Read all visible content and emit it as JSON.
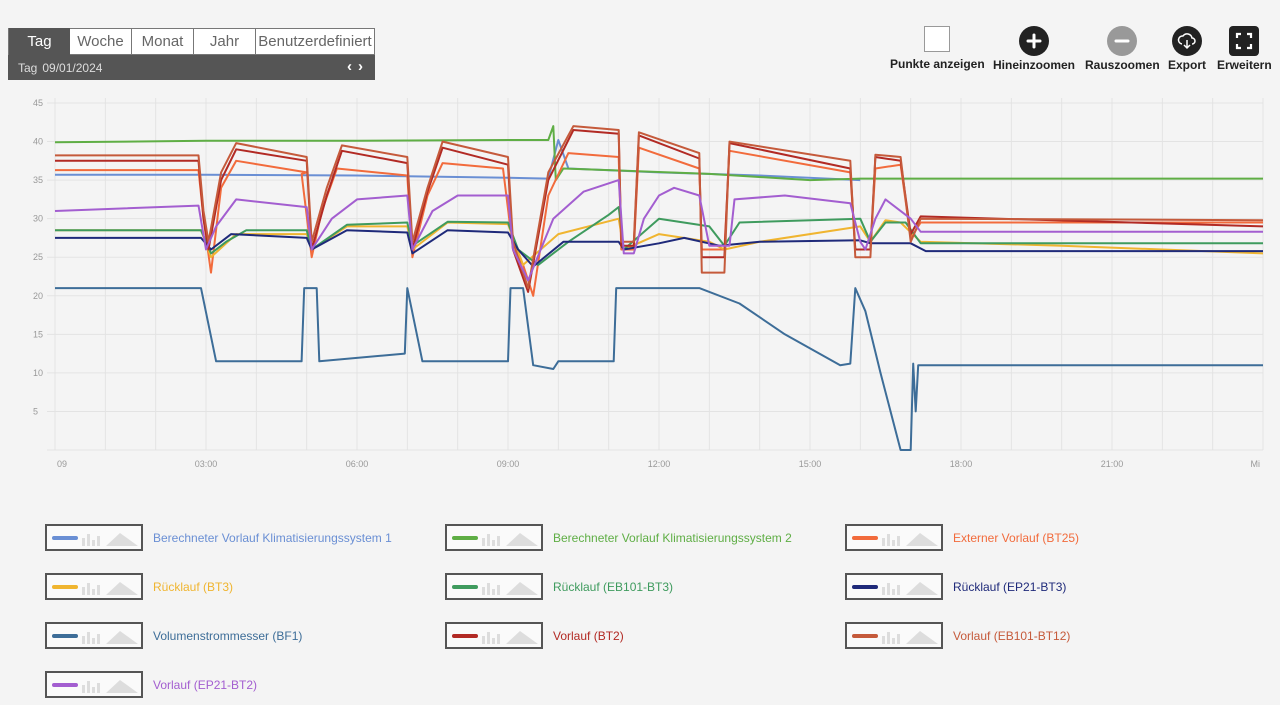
{
  "period": {
    "tabs": [
      "Tag",
      "Woche",
      "Monat",
      "Jahr",
      "Benutzerdefiniert"
    ],
    "active": "Tag",
    "unit_label": "Tag",
    "date": "09/01/2024",
    "prev": "‹",
    "next": "›"
  },
  "toolbar": {
    "points_label": "Punkte anzeigen",
    "zoom_in_label": "Hineinzoomen",
    "zoom_out_label": "Rauszoomen",
    "export_label": "Export",
    "expand_label": "Erweitern"
  },
  "colors": {
    "zoom_in": "#222222",
    "zoom_out": "#999999",
    "export": "#222222"
  },
  "chart_data": {
    "type": "line",
    "ylim": [
      0,
      45
    ],
    "yticks": [
      5,
      10,
      15,
      20,
      25,
      30,
      35,
      40,
      45
    ],
    "xlim": [
      0,
      24
    ],
    "xticks": [
      {
        "v": 0,
        "label": "09"
      },
      {
        "v": 3,
        "label": "03:00"
      },
      {
        "v": 6,
        "label": "06:00"
      },
      {
        "v": 9,
        "label": "09:00"
      },
      {
        "v": 12,
        "label": "12:00"
      },
      {
        "v": 15,
        "label": "15:00"
      },
      {
        "v": 18,
        "label": "18:00"
      },
      {
        "v": 21,
        "label": "21:00"
      },
      {
        "v": 24,
        "label": "Mi"
      }
    ],
    "grid": true,
    "series": [
      {
        "name": "Berechneter Vorlauf Klimatisierungssystem 1",
        "color": "#6a8fd4",
        "points": [
          [
            0,
            35.7
          ],
          [
            3,
            35.7
          ],
          [
            6,
            35.6
          ],
          [
            9,
            35.3
          ],
          [
            9.8,
            35.2
          ],
          [
            10,
            40.2
          ],
          [
            10.2,
            36.5
          ],
          [
            12,
            36
          ],
          [
            14,
            35.6
          ],
          [
            16,
            35
          ]
        ]
      },
      {
        "name": "Berechneter Vorlauf Klimatisierungssystem 2",
        "color": "#5fae45",
        "points": [
          [
            0,
            39.9
          ],
          [
            3,
            40.1
          ],
          [
            6,
            40.1
          ],
          [
            9,
            40.2
          ],
          [
            9.8,
            40.2
          ],
          [
            9.9,
            42
          ],
          [
            9.95,
            35
          ],
          [
            10.1,
            36.5
          ],
          [
            11,
            36.3
          ],
          [
            13,
            35.8
          ],
          [
            15,
            35
          ],
          [
            16,
            35.2
          ],
          [
            17,
            35.2
          ],
          [
            24,
            35.2
          ]
        ]
      },
      {
        "name": "Externer Vorlauf (BT25)",
        "color": "#f26b3c",
        "points": [
          [
            0,
            36.3
          ],
          [
            2.85,
            36.3
          ],
          [
            2.95,
            30
          ],
          [
            3.1,
            23
          ],
          [
            3.3,
            34
          ],
          [
            3.6,
            37.5
          ],
          [
            5,
            36
          ],
          [
            4.9,
            35.8
          ],
          [
            5.1,
            25
          ],
          [
            5.3,
            31
          ],
          [
            5.6,
            36.5
          ],
          [
            7,
            35.6
          ],
          [
            7.1,
            25
          ],
          [
            7.4,
            33
          ],
          [
            7.7,
            37.2
          ],
          [
            8.9,
            36.5
          ],
          [
            9.1,
            26
          ],
          [
            9.3,
            24
          ],
          [
            9.5,
            20
          ],
          [
            9.8,
            33
          ],
          [
            10.2,
            38.5
          ],
          [
            11.2,
            38
          ],
          [
            11.25,
            26
          ],
          [
            11.5,
            26
          ],
          [
            11.6,
            39.2
          ],
          [
            12.8,
            36.5
          ],
          [
            12.85,
            26
          ],
          [
            13.3,
            26
          ],
          [
            13.4,
            38.8
          ],
          [
            15.8,
            36
          ],
          [
            15.9,
            26
          ],
          [
            16.2,
            26
          ],
          [
            16.3,
            36.5
          ],
          [
            16.8,
            37
          ],
          [
            17.0,
            27.5
          ],
          [
            17.2,
            29.5
          ],
          [
            24,
            29.5
          ]
        ]
      },
      {
        "name": "Rücklauf (BT3)",
        "color": "#f0b530",
        "points": [
          [
            0,
            28.5
          ],
          [
            2.9,
            28.5
          ],
          [
            3.1,
            25
          ],
          [
            3.6,
            28
          ],
          [
            5,
            28
          ],
          [
            5.1,
            26
          ],
          [
            5.8,
            29
          ],
          [
            7,
            29
          ],
          [
            7.1,
            26
          ],
          [
            7.8,
            29.5
          ],
          [
            9,
            29.3
          ],
          [
            9.3,
            24
          ],
          [
            10,
            28
          ],
          [
            11.2,
            30
          ],
          [
            11.3,
            26
          ],
          [
            12,
            28
          ],
          [
            13,
            27
          ],
          [
            13.3,
            26
          ],
          [
            14,
            27
          ],
          [
            16,
            29
          ],
          [
            16.2,
            27
          ],
          [
            16.5,
            29.8
          ],
          [
            16.8,
            29.5
          ],
          [
            17.2,
            27
          ],
          [
            20,
            26.5
          ],
          [
            24,
            25.5
          ]
        ]
      },
      {
        "name": "Rücklauf (EB101-BT3)",
        "color": "#3f9b5e",
        "points": [
          [
            0,
            28.5
          ],
          [
            2.9,
            28.5
          ],
          [
            3.1,
            25.5
          ],
          [
            3.4,
            27
          ],
          [
            3.8,
            28.5
          ],
          [
            5,
            28.5
          ],
          [
            5.1,
            26
          ],
          [
            5.8,
            29.2
          ],
          [
            7,
            29.5
          ],
          [
            7.1,
            26.5
          ],
          [
            7.8,
            29.6
          ],
          [
            9,
            29.5
          ],
          [
            9.2,
            26
          ],
          [
            9.6,
            24
          ],
          [
            10.2,
            27
          ],
          [
            11,
            30.5
          ],
          [
            11.2,
            31.5
          ],
          [
            11.3,
            26
          ],
          [
            12,
            30
          ],
          [
            13,
            29
          ],
          [
            13.3,
            26.5
          ],
          [
            13.6,
            29.5
          ],
          [
            16,
            30
          ],
          [
            16.2,
            27
          ],
          [
            16.5,
            29.5
          ],
          [
            16.9,
            29.5
          ],
          [
            17.2,
            26.8
          ],
          [
            24,
            26.8
          ]
        ]
      },
      {
        "name": "Rücklauf (EP21-BT3)",
        "color": "#1f2a7a",
        "points": [
          [
            0,
            27.5
          ],
          [
            2.9,
            27.5
          ],
          [
            3.1,
            26
          ],
          [
            3.5,
            28
          ],
          [
            5,
            27.5
          ],
          [
            5.1,
            26
          ],
          [
            5.8,
            28.5
          ],
          [
            7,
            28.2
          ],
          [
            7.1,
            25.5
          ],
          [
            7.8,
            28.5
          ],
          [
            9,
            28.2
          ],
          [
            9.2,
            26
          ],
          [
            9.5,
            23.8
          ],
          [
            10.1,
            27
          ],
          [
            11.2,
            27
          ],
          [
            11.3,
            26
          ],
          [
            12,
            26.8
          ],
          [
            12.5,
            27.5
          ],
          [
            13.2,
            26.5
          ],
          [
            14,
            27
          ],
          [
            16,
            27.2
          ],
          [
            16.2,
            26.8
          ],
          [
            16.5,
            26.8
          ],
          [
            17,
            26.8
          ],
          [
            17.3,
            25.8
          ],
          [
            24,
            25.8
          ]
        ]
      },
      {
        "name": "Volumenstrommesser (BF1)",
        "color": "#3d6d98",
        "points": [
          [
            0,
            21
          ],
          [
            2.9,
            21
          ],
          [
            3.2,
            11.5
          ],
          [
            4.9,
            11.5
          ],
          [
            4.95,
            21
          ],
          [
            5.2,
            21
          ],
          [
            5.25,
            11.5
          ],
          [
            6.95,
            12.5
          ],
          [
            7.0,
            21
          ],
          [
            7.3,
            11.5
          ],
          [
            9.0,
            11.5
          ],
          [
            9.05,
            21
          ],
          [
            9.3,
            21
          ],
          [
            9.5,
            11
          ],
          [
            9.9,
            10.5
          ],
          [
            10.0,
            11.5
          ],
          [
            11.1,
            11.5
          ],
          [
            11.15,
            21
          ],
          [
            11.3,
            21
          ],
          [
            12.8,
            21
          ],
          [
            13.6,
            19
          ],
          [
            14.5,
            15
          ],
          [
            15.6,
            11
          ],
          [
            15.8,
            11.2
          ],
          [
            15.9,
            21
          ],
          [
            16.1,
            18
          ],
          [
            16.4,
            10
          ],
          [
            16.8,
            0
          ],
          [
            17.0,
            0
          ],
          [
            17.05,
            11.2
          ],
          [
            17.1,
            5
          ],
          [
            17.15,
            11
          ],
          [
            24,
            11
          ]
        ]
      },
      {
        "name": "Vorlauf (BT2)",
        "color": "#b22a24",
        "points": [
          [
            0,
            37.5
          ],
          [
            2.85,
            37.5
          ],
          [
            2.95,
            30
          ],
          [
            3.05,
            26
          ],
          [
            3.3,
            35
          ],
          [
            3.6,
            39
          ],
          [
            5,
            37.5
          ],
          [
            5.1,
            26
          ],
          [
            5.4,
            33
          ],
          [
            5.7,
            38.8
          ],
          [
            7,
            37.2
          ],
          [
            7.1,
            26
          ],
          [
            7.4,
            33.5
          ],
          [
            7.7,
            39.2
          ],
          [
            9,
            37
          ],
          [
            9.1,
            26
          ],
          [
            9.4,
            20.5
          ],
          [
            9.8,
            35
          ],
          [
            10.3,
            41.5
          ],
          [
            11.2,
            41
          ],
          [
            11.25,
            26.5
          ],
          [
            11.5,
            26.5
          ],
          [
            11.6,
            40.8
          ],
          [
            12.8,
            37.8
          ],
          [
            12.85,
            25
          ],
          [
            13.3,
            25
          ],
          [
            13.4,
            39.8
          ],
          [
            15.8,
            36.5
          ],
          [
            15.9,
            26
          ],
          [
            16.2,
            26
          ],
          [
            16.3,
            38
          ],
          [
            16.8,
            37.5
          ],
          [
            17.0,
            28
          ],
          [
            17.2,
            30.3
          ],
          [
            24,
            29
          ]
        ]
      },
      {
        "name": "Vorlauf (EB101-BT12)",
        "color": "#c55a3b",
        "points": [
          [
            0,
            38.2
          ],
          [
            2.85,
            38.2
          ],
          [
            2.95,
            31
          ],
          [
            3.05,
            27
          ],
          [
            3.3,
            36
          ],
          [
            3.6,
            39.8
          ],
          [
            5,
            38
          ],
          [
            5.1,
            27
          ],
          [
            5.4,
            34
          ],
          [
            5.7,
            39.5
          ],
          [
            7,
            38
          ],
          [
            7.1,
            27
          ],
          [
            7.4,
            34
          ],
          [
            7.7,
            40
          ],
          [
            9,
            38
          ],
          [
            9.1,
            27
          ],
          [
            9.4,
            21
          ],
          [
            9.8,
            36
          ],
          [
            10.3,
            42
          ],
          [
            11.2,
            41.5
          ],
          [
            11.25,
            27
          ],
          [
            11.5,
            27
          ],
          [
            11.6,
            41.2
          ],
          [
            12.8,
            38.5
          ],
          [
            12.85,
            23
          ],
          [
            13.3,
            23
          ],
          [
            13.4,
            40
          ],
          [
            15.8,
            37.5
          ],
          [
            15.9,
            25
          ],
          [
            16.2,
            25
          ],
          [
            16.3,
            38.3
          ],
          [
            16.8,
            38
          ],
          [
            17.0,
            27
          ],
          [
            17.2,
            30
          ],
          [
            24,
            29.8
          ]
        ]
      },
      {
        "name": "Vorlauf (EP21-BT2)",
        "color": "#a35ed0",
        "points": [
          [
            0,
            31
          ],
          [
            2.85,
            31.7
          ],
          [
            3.0,
            26
          ],
          [
            3.2,
            29
          ],
          [
            3.6,
            32.5
          ],
          [
            5,
            31.5
          ],
          [
            5.1,
            26
          ],
          [
            5.5,
            30
          ],
          [
            6,
            32.5
          ],
          [
            7,
            33
          ],
          [
            7.1,
            26
          ],
          [
            7.5,
            31
          ],
          [
            8,
            33
          ],
          [
            9,
            33
          ],
          [
            9.1,
            26
          ],
          [
            9.4,
            22
          ],
          [
            9.9,
            30
          ],
          [
            10.5,
            33.5
          ],
          [
            11.2,
            35
          ],
          [
            11.3,
            25.5
          ],
          [
            11.5,
            25.5
          ],
          [
            11.7,
            30
          ],
          [
            12,
            33
          ],
          [
            12.3,
            34
          ],
          [
            12.8,
            33
          ],
          [
            13.0,
            26.5
          ],
          [
            13.4,
            26.5
          ],
          [
            13.5,
            32.5
          ],
          [
            14.5,
            33
          ],
          [
            15.8,
            32
          ],
          [
            16.0,
            27
          ],
          [
            16.1,
            26
          ],
          [
            16.3,
            30
          ],
          [
            16.5,
            32.5
          ],
          [
            17.0,
            30
          ],
          [
            17.2,
            28.3
          ],
          [
            24,
            28.3
          ]
        ]
      }
    ]
  }
}
